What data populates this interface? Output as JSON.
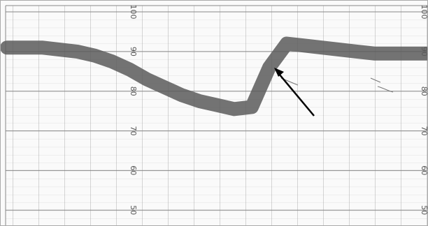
{
  "chart_data": {
    "type": "line",
    "categories": [
      null,
      null,
      null,
      null,
      null,
      null,
      null,
      null,
      null,
      null,
      null,
      null,
      null,
      null,
      null,
      null,
      null,
      null,
      null,
      null,
      null,
      null,
      null,
      null,
      null
    ],
    "series": [
      {
        "color": "#5a5a5a",
        "values": [
          91,
          91,
          91,
          90.5,
          90,
          89,
          87.5,
          85.5,
          83,
          81,
          79,
          77.5,
          76.5,
          75.5,
          76,
          86,
          92,
          91.5,
          91,
          90.5,
          90,
          89.5,
          89.5,
          89.5,
          89.5
        ]
      }
    ],
    "ylim": [
      46,
      103
    ],
    "yticks": [
      50,
      60,
      70,
      80,
      90,
      100
    ],
    "grid": true
  }
}
